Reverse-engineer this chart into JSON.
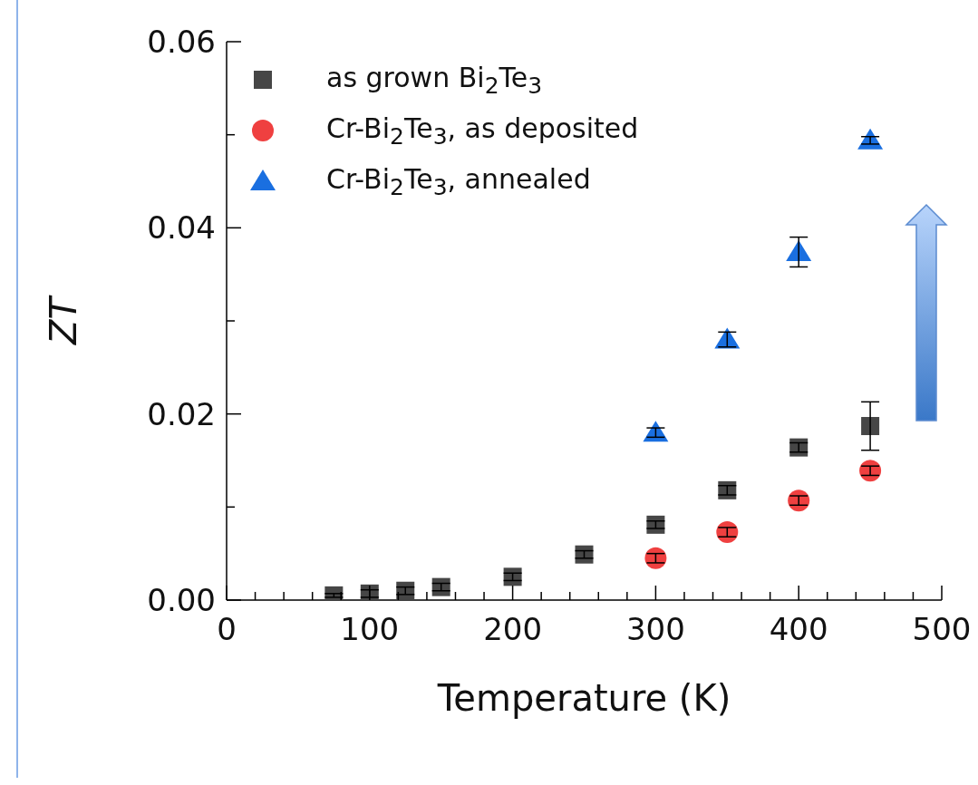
{
  "chart_data": {
    "type": "scatter",
    "xlabel": "Temperature (K)",
    "ylabel": "ZT",
    "xlim": [
      0,
      500
    ],
    "xticks": [
      0,
      {
        "value": 20,
        "label": null
      },
      {
        "value": 40,
        "label": null
      },
      {
        "value": 60,
        "label": null
      },
      {
        "value": 80,
        "label": null
      },
      100,
      {
        "value": 120,
        "label": null
      },
      {
        "value": 140,
        "label": null
      },
      {
        "value": 160,
        "label": null
      },
      {
        "value": 180,
        "label": null
      },
      200,
      {
        "value": 220,
        "label": null
      },
      {
        "value": 240,
        "label": null
      },
      {
        "value": 260,
        "label": null
      },
      {
        "value": 280,
        "label": null
      },
      300,
      {
        "value": 320,
        "label": null
      },
      {
        "value": 340,
        "label": null
      },
      {
        "value": 360,
        "label": null
      },
      {
        "value": 380,
        "label": null
      },
      400,
      {
        "value": 420,
        "label": null
      },
      {
        "value": 440,
        "label": null
      },
      {
        "value": 460,
        "label": null
      },
      {
        "value": 480,
        "label": null
      },
      500
    ],
    "ylim": [
      0,
      0.06
    ],
    "yticks": [
      {
        "value": 0,
        "label": "0.00"
      },
      {
        "value": 0.01,
        "label": null
      },
      {
        "value": 0.02,
        "label": "0.02"
      },
      {
        "value": 0.03,
        "label": null
      },
      {
        "value": 0.04,
        "label": "0.04"
      },
      {
        "value": 0.05,
        "label": null
      },
      {
        "value": 0.06,
        "label": "0.06"
      }
    ],
    "legend": "top left",
    "series": [
      {
        "name": "as grown Bi$_{2}$Te$_{3}$",
        "color": "#464646",
        "marker": "square",
        "x": [
          75,
          100,
          125,
          150,
          200,
          250,
          300,
          350,
          400,
          450
        ],
        "values": [
          0.0005,
          0.0007,
          0.001,
          0.0014,
          0.0025,
          0.0049,
          0.0081,
          0.0118,
          0.0164,
          0.0187
        ],
        "errors": [
          0.0002,
          0.0004,
          0.0004,
          0.0004,
          0.0004,
          0.0004,
          0.0004,
          0.0005,
          0.0005,
          0.0026
        ]
      },
      {
        "name": "Cr-Bi$_{2}$Te$_{3}$, as deposited",
        "color": "#ef4040",
        "marker": "circle",
        "x": [
          300,
          350,
          400,
          450
        ],
        "values": [
          0.0045,
          0.0073,
          0.0107,
          0.0139
        ],
        "errors": [
          0.0005,
          0.0005,
          0.0005,
          0.0005
        ]
      },
      {
        "name": "Cr-Bi$_{2}$Te$_{3}$, annealed",
        "color": "#1a6fe0",
        "marker": "triangle",
        "x": [
          300,
          350,
          400,
          450
        ],
        "values": [
          0.018,
          0.028,
          0.0374,
          0.0494
        ],
        "errors": [
          0.0005,
          0.0008,
          0.0016,
          0.0004
        ]
      }
    ]
  }
}
